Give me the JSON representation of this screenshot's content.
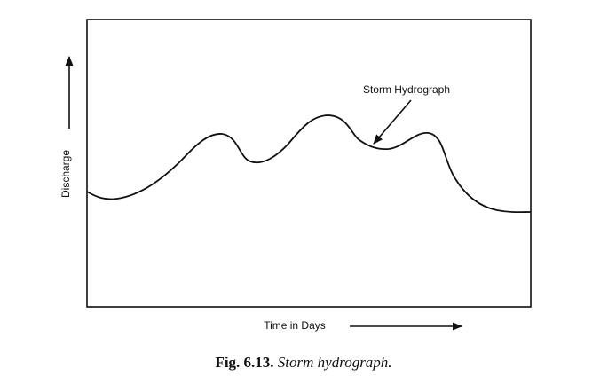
{
  "diagram": {
    "y_axis_label": "Discharge",
    "x_axis_label": "Time in Days",
    "curve_label": "Storm Hydrograph"
  },
  "caption": {
    "number": "Fig. 6.13.",
    "text": "Storm hydrograph."
  }
}
